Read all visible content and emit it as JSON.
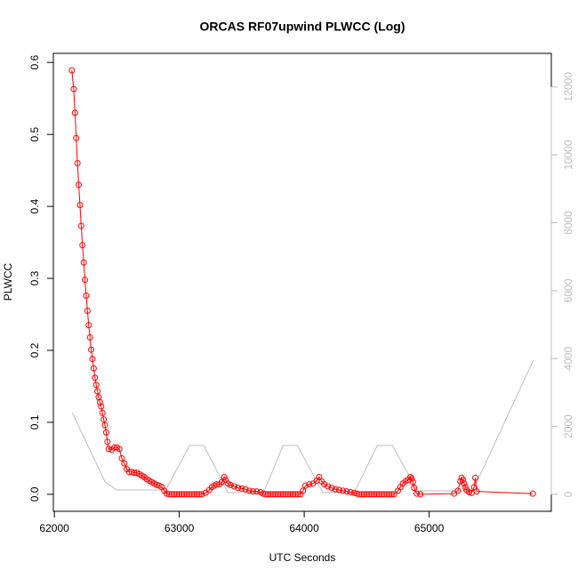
{
  "chart_data": {
    "type": "line",
    "title": "ORCAS RF07upwind PLWCC (Log)",
    "xlabel": "UTC Seconds",
    "ylabel": "PLWCC",
    "xlim": [
      61992,
      65978
    ],
    "xticks": [
      62000,
      63000,
      64000,
      65000
    ],
    "ylim": [
      -0.0236,
      0.6126
    ],
    "yticks": [
      {
        "value": 0,
        "label": "0.0"
      },
      0.1,
      0.2,
      0.3,
      0.4,
      0.5,
      0.6
    ],
    "y2lim": [
      -500,
      12990
    ],
    "y2ticks": [
      0,
      2000,
      4000,
      6000,
      8000,
      10000,
      12000
    ],
    "y2color": "#bebebe",
    "series": [
      {
        "color": "#ff0000",
        "markers": true,
        "x": [
          62140,
          62155,
          62165,
          62175,
          62185,
          62195,
          62205,
          62215,
          62225,
          62235,
          62245,
          62255,
          62265,
          62275,
          62285,
          62295,
          62305,
          62315,
          62325,
          62335,
          62345,
          62355,
          62365,
          62375,
          62385,
          62395,
          62405,
          62415,
          62425,
          62435,
          62460,
          62480,
          62500,
          62520,
          62540,
          62560,
          62580,
          62600,
          62620,
          62640,
          62660,
          62680,
          62700,
          62720,
          62740,
          62760,
          62780,
          62800,
          62820,
          62840,
          62860,
          62880,
          62900,
          62920,
          62940,
          62960,
          62980,
          63000,
          63020,
          63040,
          63060,
          63080,
          63100,
          63120,
          63140,
          63160,
          63180,
          63210,
          63240,
          63260,
          63280,
          63300,
          63320,
          63340,
          63360,
          63370,
          63390,
          63410,
          63440,
          63470,
          63500,
          63530,
          63560,
          63590,
          63620,
          63650,
          63670,
          63690,
          63710,
          63730,
          63750,
          63770,
          63790,
          63810,
          63830,
          63850,
          63870,
          63890,
          63910,
          63930,
          63950,
          63970,
          63990,
          64010,
          64040,
          64070,
          64100,
          64120,
          64140,
          64160,
          64190,
          64220,
          64250,
          64280,
          64310,
          64340,
          64370,
          64400,
          64420,
          64440,
          64460,
          64480,
          64500,
          64520,
          64540,
          64560,
          64580,
          64600,
          64620,
          64640,
          64660,
          64680,
          64700,
          64720,
          64750,
          64770,
          64790,
          64810,
          64830,
          64850,
          64860,
          64870,
          64880,
          64900,
          64930,
          65200,
          65230,
          65250,
          65260,
          65270,
          65280,
          65290,
          65300,
          65320,
          65340,
          65360,
          65370,
          65380,
          65830
        ],
        "values": [
          0.589,
          0.563,
          0.53,
          0.495,
          0.46,
          0.43,
          0.402,
          0.373,
          0.346,
          0.322,
          0.298,
          0.276,
          0.255,
          0.235,
          0.218,
          0.201,
          0.188,
          0.175,
          0.162,
          0.152,
          0.143,
          0.135,
          0.128,
          0.122,
          0.113,
          0.104,
          0.096,
          0.086,
          0.073,
          0.063,
          0.062,
          0.065,
          0.065,
          0.063,
          0.05,
          0.043,
          0.035,
          0.031,
          0.031,
          0.03,
          0.03,
          0.028,
          0.026,
          0.024,
          0.021,
          0.019,
          0.017,
          0.015,
          0.013,
          0.012,
          0.01,
          0.005,
          0.001,
          0,
          0,
          0,
          0,
          0,
          0,
          0,
          0,
          0,
          0,
          0,
          0,
          0,
          0,
          0.002,
          0.006,
          0.01,
          0.012,
          0.014,
          0.014,
          0.017,
          0.024,
          0.02,
          0.015,
          0.013,
          0.011,
          0.009,
          0.008,
          0.007,
          0.005,
          0.004,
          0.004,
          0.003,
          0.001,
          0,
          0,
          0,
          0,
          0,
          0,
          0,
          0,
          0,
          0,
          0,
          0,
          0,
          0,
          0,
          0.005,
          0.012,
          0.014,
          0.015,
          0.019,
          0.024,
          0.018,
          0.014,
          0.011,
          0.009,
          0.007,
          0.006,
          0.005,
          0.004,
          0.003,
          0.002,
          0.001,
          0,
          0,
          0,
          0,
          0,
          0,
          0,
          0,
          0,
          0,
          0,
          0,
          0,
          0,
          0,
          0.005,
          0.01,
          0.015,
          0.018,
          0.02,
          0.024,
          0.022,
          0.017,
          0.009,
          0.001,
          0,
          0.001,
          0.005,
          0.018,
          0.023,
          0.02,
          0.015,
          0.01,
          0.006,
          0.003,
          0.002,
          0.01,
          0.023,
          0.004,
          0.001
        ]
      },
      {
        "color": "#bebebe",
        "axis": "y2",
        "markers": false,
        "x": [
          62143,
          62406,
          62499,
          62891,
          63083,
          63197,
          63390,
          63675,
          63831,
          63945,
          64150,
          64400,
          64585,
          64706,
          64906,
          65349,
          65834
        ],
        "values": [
          2405,
          366,
          130,
          130,
          1438,
          1438,
          52,
          52,
          1438,
          1438,
          52,
          52,
          1438,
          1438,
          105,
          105,
          3948
        ]
      }
    ]
  }
}
